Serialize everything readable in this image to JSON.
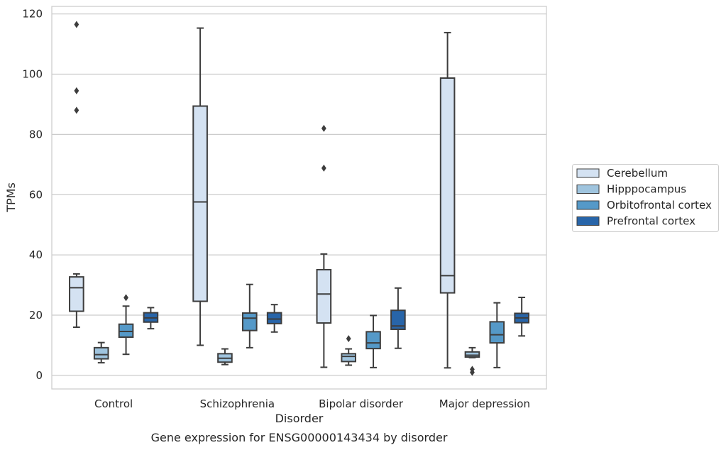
{
  "chart_data": {
    "type": "box",
    "title": "",
    "caption": "Gene expression for ENSG00000143434 by disorder",
    "xlabel": "Disorder",
    "ylabel": "TPMs",
    "ylim": [
      -4.5,
      122.5
    ],
    "yticks": [
      0,
      20,
      40,
      60,
      80,
      100,
      120
    ],
    "grid": "horizontal",
    "legend_position": "right",
    "categories": [
      "Control",
      "Schizophrenia",
      "Bipolar disorder",
      "Major depression"
    ],
    "series": [
      {
        "name": "Cerebellum",
        "color": "#d4e2f2",
        "boxes": [
          {
            "whisker_low": 16,
            "q1": 21.3,
            "median": 29.1,
            "q3": 32.7,
            "whisker_high": 33.7,
            "outliers": [
              116.5,
              94.5,
              88
            ]
          },
          {
            "whisker_low": 10,
            "q1": 24.6,
            "median": 57.6,
            "q3": 89.4,
            "whisker_high": 115.3,
            "outliers": []
          },
          {
            "whisker_low": 2.7,
            "q1": 17.4,
            "median": 27,
            "q3": 35.1,
            "whisker_high": 40.3,
            "outliers": [
              82,
              68.8
            ]
          },
          {
            "whisker_low": 2.5,
            "q1": 27.4,
            "median": 33.1,
            "q3": 98.7,
            "whisker_high": 113.8,
            "outliers": []
          }
        ]
      },
      {
        "name": "Hipppocampus",
        "color": "#9fc4de",
        "boxes": [
          {
            "whisker_low": 4.2,
            "q1": 5.5,
            "median": 6.9,
            "q3": 9.2,
            "whisker_high": 10.9,
            "outliers": []
          },
          {
            "whisker_low": 3.6,
            "q1": 4.4,
            "median": 5.7,
            "q3": 7.2,
            "whisker_high": 8.8,
            "outliers": []
          },
          {
            "whisker_low": 3.4,
            "q1": 4.6,
            "median": 6.3,
            "q3": 7.2,
            "whisker_high": 8.8,
            "outliers": [
              12.2
            ]
          },
          {
            "whisker_low": 5.9,
            "q1": 6.1,
            "median": 6.7,
            "q3": 7.8,
            "whisker_high": 9.2,
            "outliers": [
              2,
              1
            ]
          }
        ]
      },
      {
        "name": "Orbitofrontal cortex",
        "color": "#5599c8",
        "boxes": [
          {
            "whisker_low": 7,
            "q1": 12.7,
            "median": 14.6,
            "q3": 17,
            "whisker_high": 23,
            "outliers": [
              25.8
            ]
          },
          {
            "whisker_low": 9.2,
            "q1": 14.9,
            "median": 19,
            "q3": 20.7,
            "whisker_high": 30.2,
            "outliers": []
          },
          {
            "whisker_low": 2.6,
            "q1": 8.9,
            "median": 10.8,
            "q3": 14.5,
            "whisker_high": 19.9,
            "outliers": []
          },
          {
            "whisker_low": 2.6,
            "q1": 10.8,
            "median": 13.5,
            "q3": 17.8,
            "whisker_high": 24.1,
            "outliers": []
          }
        ]
      },
      {
        "name": "Prefrontal cortex",
        "color": "#2865a9",
        "boxes": [
          {
            "whisker_low": 15.5,
            "q1": 17.7,
            "median": 19.1,
            "q3": 20.8,
            "whisker_high": 22.5,
            "outliers": []
          },
          {
            "whisker_low": 14.4,
            "q1": 17.2,
            "median": 18.7,
            "q3": 20.8,
            "whisker_high": 23.5,
            "outliers": []
          },
          {
            "whisker_low": 9,
            "q1": 15.3,
            "median": 16.4,
            "q3": 21.6,
            "whisker_high": 29,
            "outliers": []
          },
          {
            "whisker_low": 13.1,
            "q1": 17.5,
            "median": 19.1,
            "q3": 20.6,
            "whisker_high": 25.9,
            "outliers": []
          }
        ]
      }
    ]
  }
}
